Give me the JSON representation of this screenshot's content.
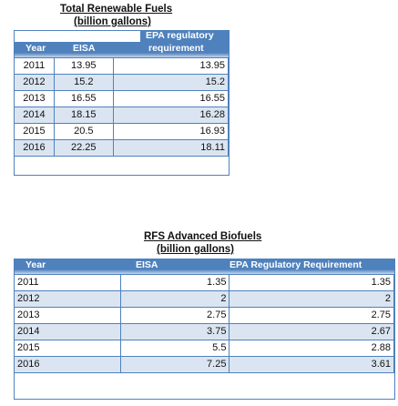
{
  "table1": {
    "title": "Total Renewable Fuels",
    "subtitle": "(billion gallons)",
    "header": {
      "year": "Year",
      "eisa": "EISA",
      "epa_line1": "EPA regulatory",
      "epa_line2": "requirement"
    },
    "rows": [
      {
        "year": "2011",
        "eisa": "13.95",
        "epa": "13.95"
      },
      {
        "year": "2012",
        "eisa": "15.2",
        "epa": "15.2"
      },
      {
        "year": "2013",
        "eisa": "16.55",
        "epa": "16.55"
      },
      {
        "year": "2014",
        "eisa": "18.15",
        "epa": "16.28"
      },
      {
        "year": "2015",
        "eisa": "20.5",
        "epa": "16.93"
      },
      {
        "year": "2016",
        "eisa": "22.25",
        "epa": "18.11"
      }
    ]
  },
  "table2": {
    "title": "RFS Advanced Biofuels",
    "subtitle": "(billion gallons)",
    "header": {
      "year": "Year",
      "eisa": "EISA",
      "epa": "EPA Regulatory Requirement"
    },
    "rows": [
      {
        "year": "2011",
        "eisa": "1.35",
        "epa": "1.35"
      },
      {
        "year": "2012",
        "eisa": "2",
        "epa": "2"
      },
      {
        "year": "2013",
        "eisa": "2.75",
        "epa": "2.75"
      },
      {
        "year": "2014",
        "eisa": "3.75",
        "epa": "2.67"
      },
      {
        "year": "2015",
        "eisa": "5.5",
        "epa": "2.88"
      },
      {
        "year": "2016",
        "eisa": "7.25",
        "epa": "3.61"
      }
    ]
  }
}
